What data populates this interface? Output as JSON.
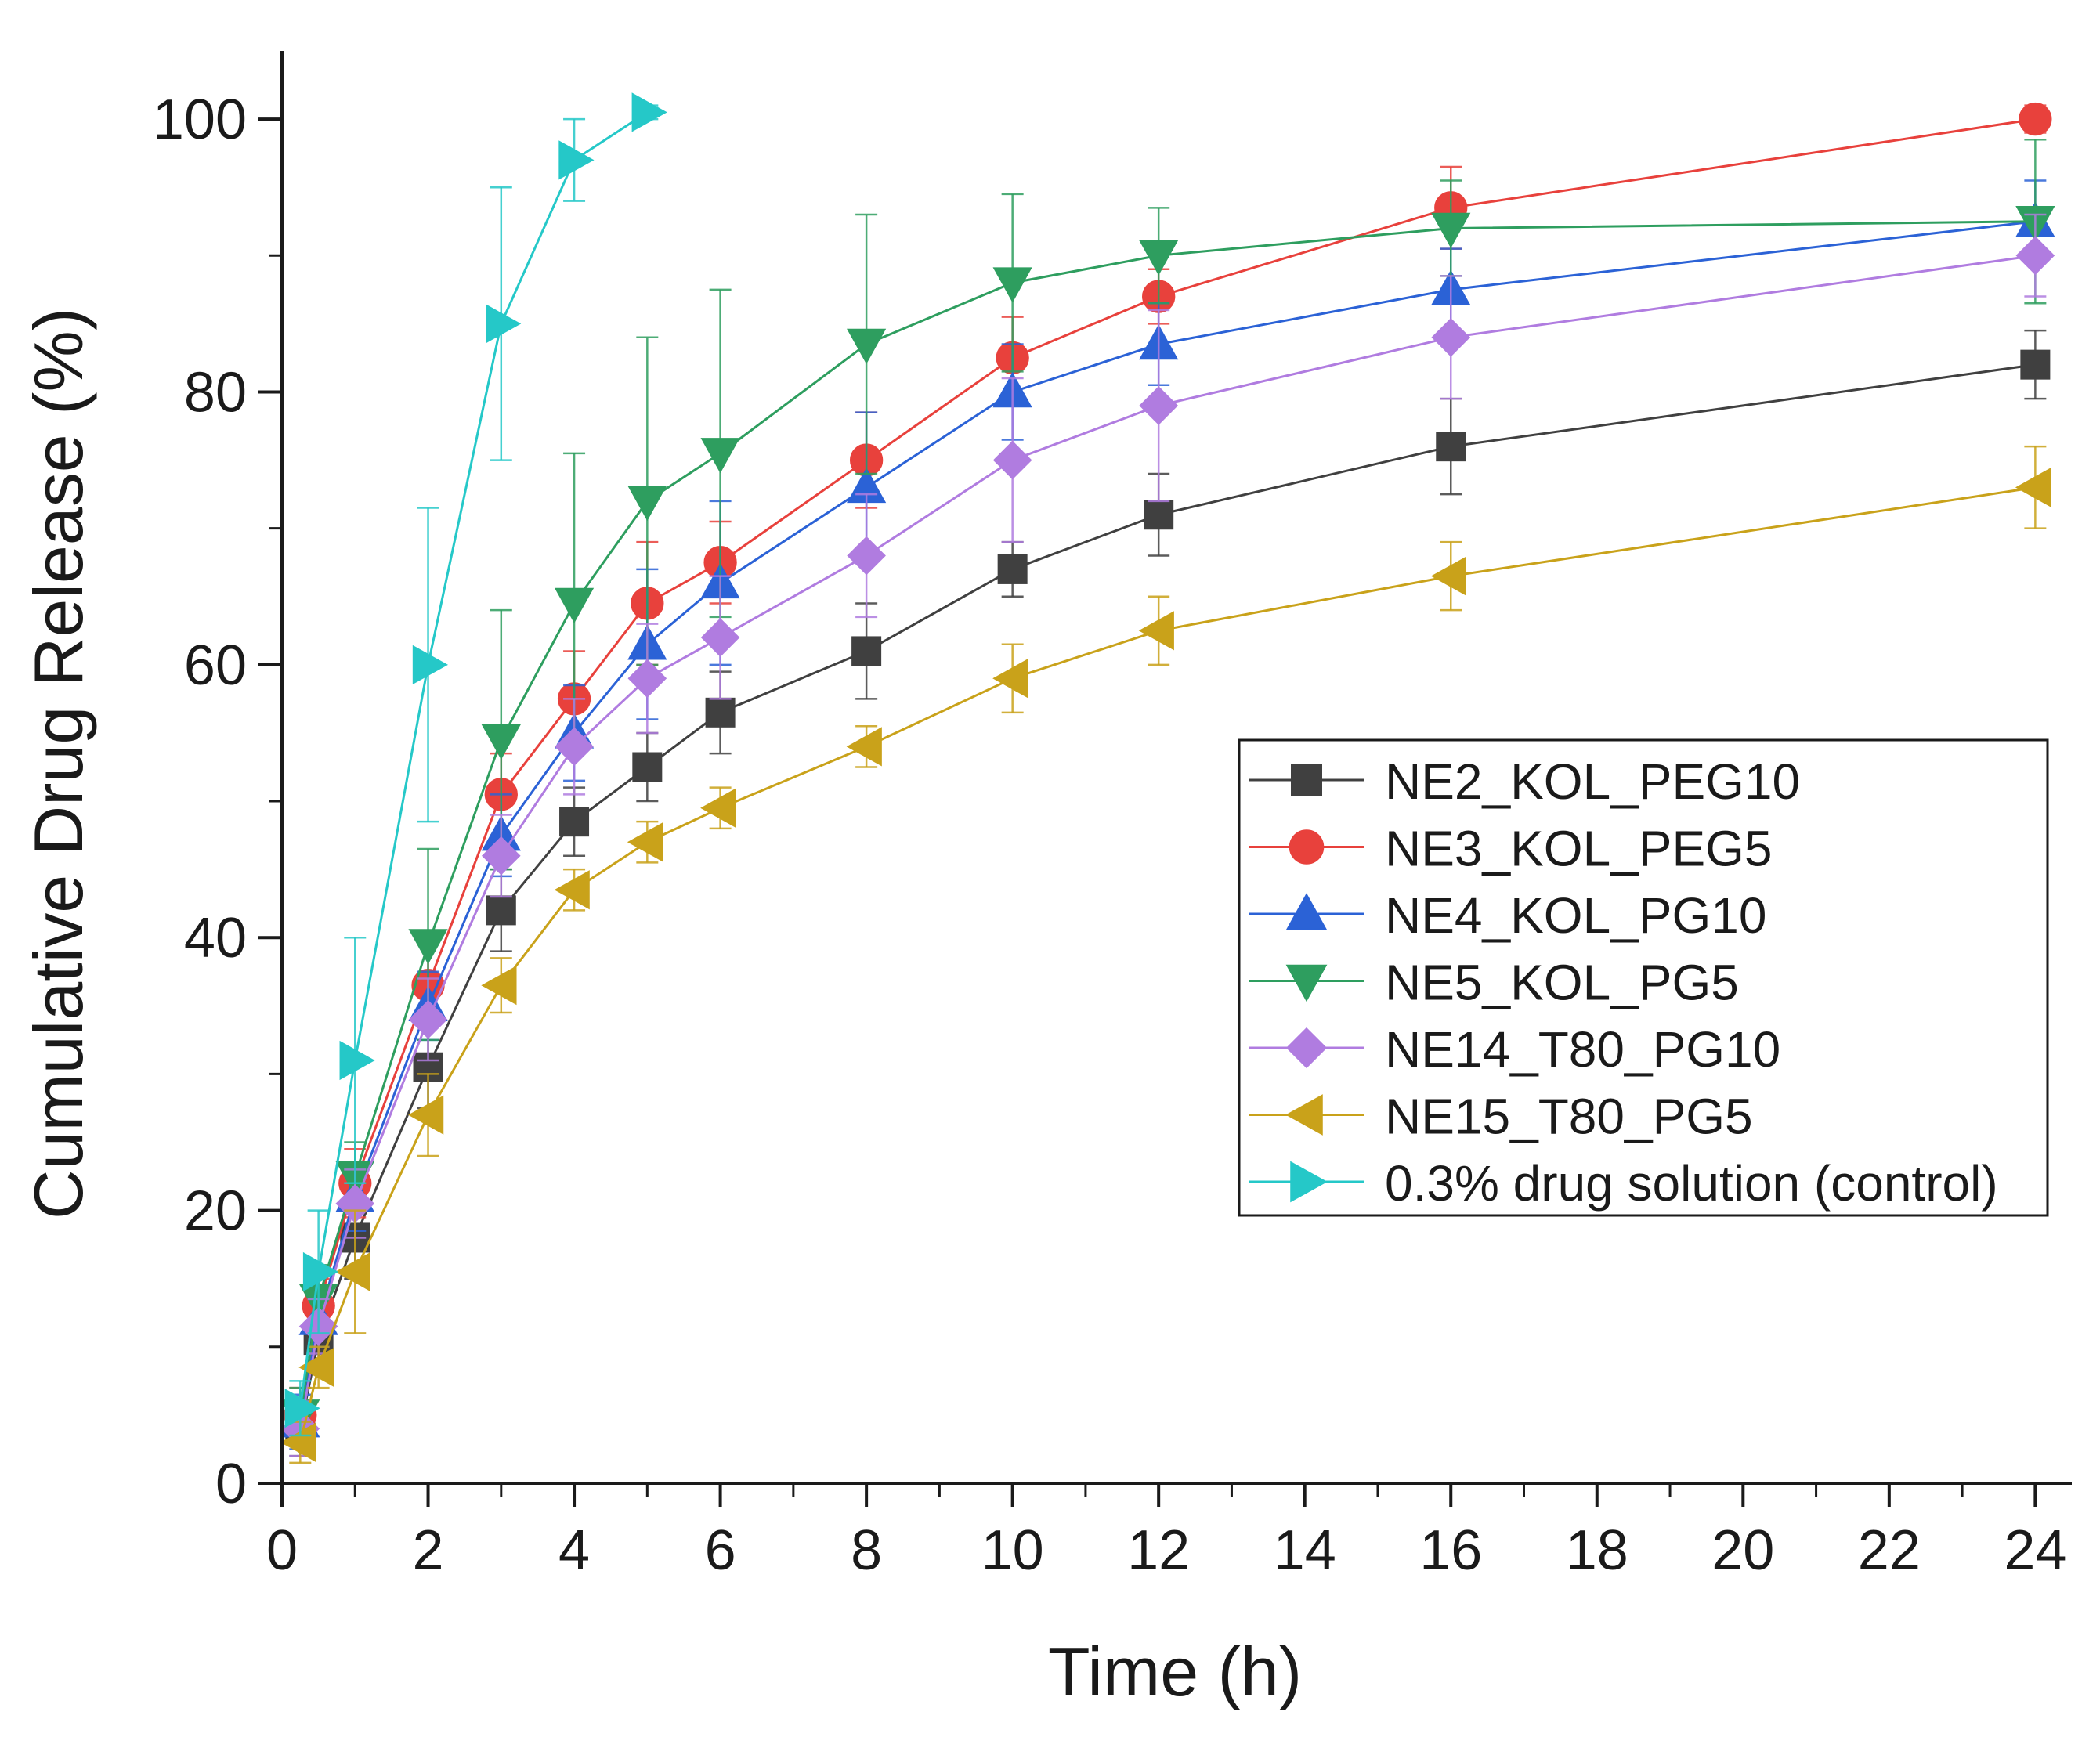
{
  "chart_data": {
    "type": "line",
    "title": "",
    "xlabel": "Time (h)",
    "ylabel": "Cumulative Drug Release (%)",
    "xlim": [
      0,
      24.5
    ],
    "ylim": [
      0,
      105
    ],
    "xticks": [
      0,
      2,
      4,
      6,
      8,
      10,
      12,
      14,
      16,
      18,
      20,
      22,
      24
    ],
    "yticks": [
      0,
      20,
      40,
      60,
      80,
      100
    ],
    "legend_position": "center-right",
    "series": [
      {
        "name": "NE2_KOL_PEG10",
        "color": "#404040",
        "marker": "square",
        "x": [
          0.25,
          0.5,
          1,
          2,
          3,
          4,
          5,
          6,
          8,
          10,
          12,
          16,
          24
        ],
        "y": [
          4,
          10.5,
          18,
          30.5,
          42,
          48.5,
          52.5,
          56.5,
          61,
          67,
          71,
          76,
          82
        ],
        "err": [
          2,
          2,
          3,
          3,
          3,
          2.5,
          2.5,
          3,
          3.5,
          2,
          3,
          3.5,
          2.5
        ]
      },
      {
        "name": "NE3_KOL_PEG5",
        "color": "#e8413c",
        "marker": "circle",
        "x": [
          0.25,
          0.5,
          1,
          2,
          3,
          4,
          5,
          6,
          8,
          10,
          12,
          16,
          24
        ],
        "y": [
          5,
          13,
          22,
          36.5,
          50.5,
          57.5,
          64.5,
          67.5,
          75,
          82.5,
          87,
          93.5,
          100
        ],
        "err": [
          2,
          2,
          2.5,
          3,
          3,
          3.5,
          4.5,
          3,
          3.5,
          3,
          2,
          3,
          1
        ]
      },
      {
        "name": "NE4_KOL_PG10",
        "color": "#2b62d6",
        "marker": "triangle-up",
        "x": [
          0.25,
          0.5,
          1,
          2,
          3,
          4,
          5,
          6,
          8,
          10,
          12,
          16,
          24
        ],
        "y": [
          4.5,
          12,
          21,
          35,
          47.5,
          55,
          61.5,
          66,
          73,
          80,
          83.5,
          87.5,
          92.5
        ],
        "err": [
          2,
          2,
          2.5,
          2.5,
          3,
          3.5,
          5.5,
          6,
          5.5,
          3.5,
          3,
          3,
          3
        ]
      },
      {
        "name": "NE5_KOL_PG5",
        "color": "#2e9e5f",
        "marker": "triangle-down",
        "x": [
          0.25,
          0.5,
          1,
          2,
          3,
          4,
          5,
          6,
          8,
          10,
          12,
          16,
          24
        ],
        "y": [
          5,
          13.5,
          22.5,
          39.5,
          54.5,
          64.5,
          72,
          75.5,
          83.5,
          88,
          90,
          92,
          92.5
        ],
        "err": [
          2,
          2.5,
          2.5,
          7,
          9.5,
          11,
          12,
          12,
          9.5,
          6.5,
          3.5,
          3.5,
          6
        ]
      },
      {
        "name": "NE14_T80_PG10",
        "color": "#b07ce0",
        "marker": "diamond",
        "x": [
          0.25,
          0.5,
          1,
          2,
          3,
          4,
          5,
          6,
          8,
          10,
          12,
          16,
          24
        ],
        "y": [
          4,
          11.5,
          20.5,
          34,
          46,
          54,
          59,
          62,
          68,
          75,
          79,
          84,
          90
        ],
        "err": [
          2,
          2,
          2.5,
          3,
          3,
          3.5,
          4,
          4.5,
          4.5,
          6,
          7,
          4.5,
          3
        ]
      },
      {
        "name": "NE15_T80_PG5",
        "color": "#c9a21a",
        "marker": "triangle-left",
        "x": [
          0.25,
          0.5,
          1,
          2,
          3,
          4,
          5,
          6,
          8,
          10,
          12,
          16,
          24
        ],
        "y": [
          3,
          8.5,
          15.5,
          27,
          36.5,
          43.5,
          47,
          49.5,
          54,
          59,
          62.5,
          66.5,
          73
        ],
        "err": [
          1.5,
          1.5,
          4.5,
          3,
          2,
          1.5,
          1.5,
          1.5,
          1.5,
          2.5,
          2.5,
          2.5,
          3
        ]
      },
      {
        "name": "0.3% drug solution (control)",
        "color": "#25c8c8",
        "marker": "triangle-right",
        "x": [
          0.25,
          0.5,
          1,
          2,
          3,
          4,
          5
        ],
        "y": [
          5.5,
          15.5,
          31,
          60,
          85,
          97,
          100.5
        ],
        "err": [
          2,
          4.5,
          9,
          11.5,
          10,
          3,
          0.5
        ]
      }
    ]
  }
}
